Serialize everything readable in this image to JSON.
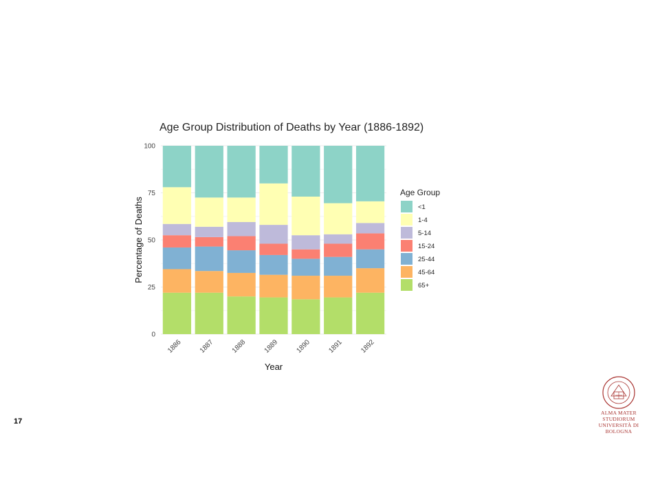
{
  "slide": {
    "number": "17"
  },
  "logo": {
    "line1": "ALMA MATER STUDIORUM",
    "line2": "UNIVERSITÀ DI BOLOGNA",
    "seal_text": "ALMA MATER STUDIORUM A.D. 1088",
    "color": "#a8322f"
  },
  "chart_data": {
    "type": "bar",
    "stacked": true,
    "title": "Age Group Distribution of Deaths by Year (1886-1892)",
    "xlabel": "Year",
    "ylabel": "Percentage of Deaths",
    "ylim": [
      0,
      100
    ],
    "yticks": [
      0,
      25,
      50,
      75,
      100
    ],
    "grid": true,
    "categories": [
      "1886",
      "1887",
      "1888",
      "1889",
      "1890",
      "1891",
      "1892"
    ],
    "legend": {
      "title": "Age Group",
      "position": "right"
    },
    "series": [
      {
        "name": "65+",
        "color": "#b3de69",
        "values": [
          22,
          22,
          20,
          19.5,
          18.5,
          19.5,
          22
        ]
      },
      {
        "name": "45-64",
        "color": "#fdb462",
        "values": [
          12.5,
          11.5,
          12.5,
          12,
          12.5,
          11.5,
          13
        ]
      },
      {
        "name": "25-44",
        "color": "#80b1d3",
        "values": [
          11.5,
          13,
          12,
          10.5,
          9,
          10,
          10
        ]
      },
      {
        "name": "15-24",
        "color": "#fb8072",
        "values": [
          6.5,
          5,
          7.5,
          6,
          5,
          7,
          8.5
        ]
      },
      {
        "name": "5-14",
        "color": "#bebada",
        "values": [
          6,
          5.5,
          7.5,
          10,
          7.5,
          5,
          5.5
        ]
      },
      {
        "name": "1-4",
        "color": "#ffffb3",
        "values": [
          19.5,
          15.5,
          13,
          22,
          20.5,
          16.5,
          11.5
        ]
      },
      {
        "name": "<1",
        "color": "#8dd3c7",
        "values": [
          22,
          27.5,
          27.5,
          20,
          27,
          30.5,
          29.5
        ]
      }
    ]
  }
}
